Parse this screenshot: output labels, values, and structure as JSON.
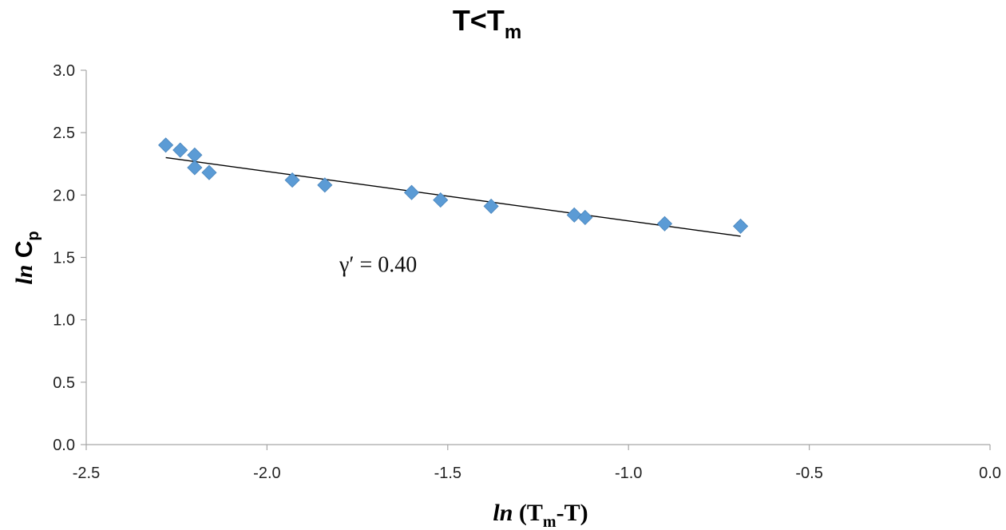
{
  "chart_data": {
    "type": "scatter",
    "title": "T<T",
    "title_sub": "m",
    "xlabel_italic": "ln",
    "xlabel_open": " (T",
    "xlabel_sub": "m",
    "xlabel_close": "-T)",
    "ylabel_italic": "ln",
    "ylabel_main": " C",
    "ylabel_sub": "p",
    "xlim": [
      -2.5,
      0.0
    ],
    "ylim": [
      0.0,
      3.0
    ],
    "xticks": [
      -2.5,
      -2.0,
      -1.5,
      -1.0,
      -0.5,
      0.0
    ],
    "yticks": [
      0.0,
      0.5,
      1.0,
      1.5,
      2.0,
      2.5,
      3.0
    ],
    "x_tick_labels": [
      "-2.5",
      "-2.0",
      "-1.5",
      "-1.0",
      "-0.5",
      "0.0"
    ],
    "y_tick_labels": [
      "0.0",
      "0.5",
      "1.0",
      "1.5",
      "2.0",
      "2.5",
      "3.0"
    ],
    "grid": false,
    "marker_color": "#5B9BD5",
    "trendline_color": "#000000",
    "points": [
      {
        "x": -2.28,
        "y": 2.4
      },
      {
        "x": -2.24,
        "y": 2.36
      },
      {
        "x": -2.2,
        "y": 2.32
      },
      {
        "x": -2.2,
        "y": 2.22
      },
      {
        "x": -2.16,
        "y": 2.18
      },
      {
        "x": -1.93,
        "y": 2.12
      },
      {
        "x": -1.84,
        "y": 2.08
      },
      {
        "x": -1.6,
        "y": 2.02
      },
      {
        "x": -1.52,
        "y": 1.96
      },
      {
        "x": -1.38,
        "y": 1.91
      },
      {
        "x": -1.15,
        "y": 1.84
      },
      {
        "x": -1.12,
        "y": 1.82
      },
      {
        "x": -0.9,
        "y": 1.77
      },
      {
        "x": -0.69,
        "y": 1.75
      }
    ],
    "trendline": {
      "x": [
        -2.28,
        -0.69
      ],
      "y": [
        2.3,
        1.67
      ]
    },
    "annotation": "γ′ = 0.40",
    "annotation_at": {
      "x": -1.8,
      "y": 1.45
    }
  }
}
